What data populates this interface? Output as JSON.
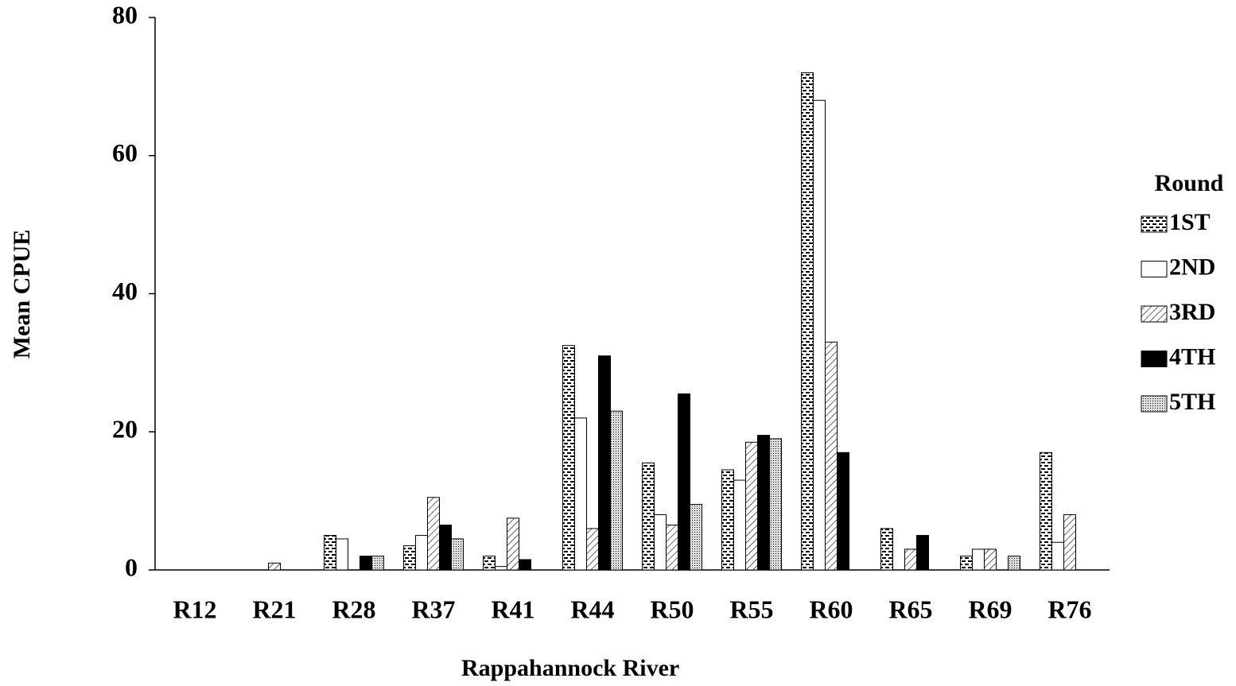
{
  "chart_data": {
    "type": "bar",
    "x_label": "Rappahannock River",
    "y_label": "Mean CPUE",
    "legend_title": "Round",
    "legend_position": "right",
    "categories": [
      "R12",
      "R21",
      "R28",
      "R37",
      "R41",
      "R44",
      "R50",
      "R55",
      "R60",
      "R65",
      "R69",
      "R76"
    ],
    "series": [
      {
        "name": "1ST",
        "color": "#000000",
        "pattern": "brick",
        "values": [
          0,
          0,
          5,
          3.5,
          2,
          32.5,
          15.5,
          14.5,
          72,
          6,
          2,
          17
        ]
      },
      {
        "name": "2ND",
        "color": "#ffffff",
        "pattern": "solid",
        "values": [
          0,
          0,
          4.5,
          5,
          0.5,
          22,
          8,
          13,
          68,
          0,
          3,
          4
        ]
      },
      {
        "name": "3RD",
        "color": "#000000",
        "pattern": "hatch",
        "values": [
          0,
          1,
          0,
          10.5,
          7.5,
          6,
          6.5,
          18.5,
          33,
          3,
          3,
          8
        ]
      },
      {
        "name": "4TH",
        "color": "#000000",
        "pattern": "solid",
        "values": [
          0,
          0,
          2,
          6.5,
          1.5,
          31,
          25.5,
          19.5,
          17,
          5,
          0,
          0
        ]
      },
      {
        "name": "5TH",
        "color": "#000000",
        "pattern": "dots",
        "values": [
          0,
          0,
          2,
          4.5,
          0,
          23,
          9.5,
          19,
          0,
          0,
          2,
          0
        ]
      }
    ],
    "ylim": [
      0,
      80
    ],
    "yticks": [
      0,
      20,
      40,
      60,
      80
    ],
    "grid": false
  }
}
